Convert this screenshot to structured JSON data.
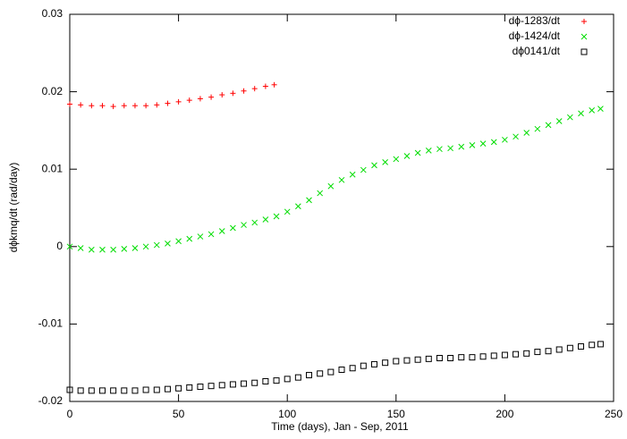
{
  "chart_data": {
    "type": "scatter",
    "xlabel": "Time (days), Jan - Sep, 2011",
    "ylabel": "dϕkmq/dt (rad/day)",
    "xlim": [
      0,
      250
    ],
    "xticks": [
      0,
      50,
      100,
      150,
      200,
      250
    ],
    "ylim": [
      -0.02,
      0.03
    ],
    "yticks": [
      -0.02,
      -0.01,
      0,
      0.01,
      0.02,
      0.03
    ],
    "legend": "top-right",
    "series": [
      {
        "name": "dϕ-1283/dt",
        "color": "#ff0000",
        "marker": "plus",
        "x": [
          0,
          5,
          10,
          15,
          20,
          25,
          30,
          35,
          40,
          45,
          50,
          55,
          60,
          65,
          70,
          75,
          80,
          85,
          90,
          94
        ],
        "values": [
          0.0184,
          0.0183,
          0.0182,
          0.0182,
          0.0181,
          0.0182,
          0.0182,
          0.0182,
          0.0183,
          0.0185,
          0.0187,
          0.0189,
          0.0191,
          0.0193,
          0.0196,
          0.0198,
          0.0201,
          0.0204,
          0.0207,
          0.0209
        ]
      },
      {
        "name": "dϕ-1424/dt",
        "color": "#00dd00",
        "marker": "cross",
        "x": [
          0,
          5,
          10,
          15,
          20,
          25,
          30,
          35,
          40,
          45,
          50,
          55,
          60,
          65,
          70,
          75,
          80,
          85,
          90,
          95,
          100,
          105,
          110,
          115,
          120,
          125,
          130,
          135,
          140,
          145,
          150,
          155,
          160,
          165,
          170,
          175,
          180,
          185,
          190,
          195,
          200,
          205,
          210,
          215,
          220,
          225,
          230,
          235,
          240,
          244
        ],
        "values": [
          0,
          -0.0002,
          -0.0004,
          -0.0004,
          -0.0004,
          -0.0003,
          -0.0002,
          0,
          0.0002,
          0.0004,
          0.0007,
          0.001,
          0.0013,
          0.0016,
          0.002,
          0.0024,
          0.0028,
          0.0031,
          0.0035,
          0.0039,
          0.0045,
          0.0052,
          0.006,
          0.0069,
          0.0078,
          0.0086,
          0.0093,
          0.0099,
          0.0105,
          0.0109,
          0.0113,
          0.0117,
          0.0121,
          0.0124,
          0.0126,
          0.0127,
          0.0129,
          0.0131,
          0.0133,
          0.0135,
          0.0138,
          0.0142,
          0.0147,
          0.0152,
          0.0157,
          0.0162,
          0.0167,
          0.0172,
          0.0176,
          0.0178
        ]
      },
      {
        "name": "dϕ0141/dt",
        "color": "#000000",
        "marker": "square",
        "x": [
          0,
          5,
          10,
          15,
          20,
          25,
          30,
          35,
          40,
          45,
          50,
          55,
          60,
          65,
          70,
          75,
          80,
          85,
          90,
          95,
          100,
          105,
          110,
          115,
          120,
          125,
          130,
          135,
          140,
          145,
          150,
          155,
          160,
          165,
          170,
          175,
          180,
          185,
          190,
          195,
          200,
          205,
          210,
          215,
          220,
          225,
          230,
          235,
          240,
          244
        ],
        "values": [
          -0.0185,
          -0.0186,
          -0.0186,
          -0.0186,
          -0.0186,
          -0.0186,
          -0.0186,
          -0.0185,
          -0.0185,
          -0.0184,
          -0.0183,
          -0.0182,
          -0.0181,
          -0.018,
          -0.0179,
          -0.0178,
          -0.0177,
          -0.0176,
          -0.0174,
          -0.0173,
          -0.0171,
          -0.0169,
          -0.0166,
          -0.0164,
          -0.0162,
          -0.0159,
          -0.0157,
          -0.0154,
          -0.0152,
          -0.015,
          -0.0148,
          -0.0147,
          -0.0146,
          -0.0145,
          -0.0144,
          -0.0144,
          -0.0143,
          -0.0143,
          -0.0142,
          -0.0141,
          -0.014,
          -0.0139,
          -0.0138,
          -0.0136,
          -0.0135,
          -0.0133,
          -0.0131,
          -0.0129,
          -0.0127,
          -0.0126
        ]
      }
    ]
  }
}
